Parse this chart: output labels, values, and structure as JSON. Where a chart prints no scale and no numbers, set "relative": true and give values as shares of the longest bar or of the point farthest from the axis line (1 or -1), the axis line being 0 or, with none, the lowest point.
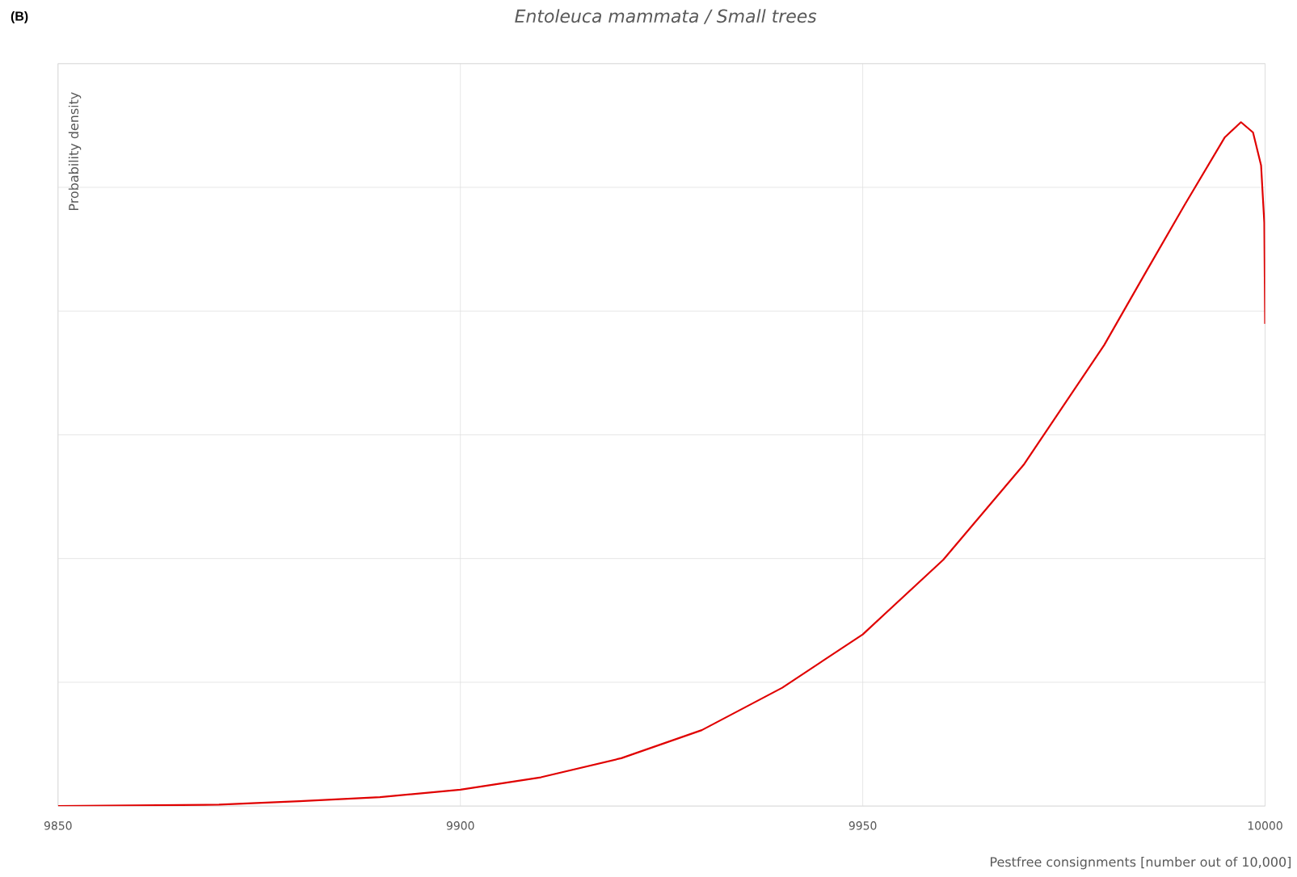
{
  "chart_data": {
    "type": "line",
    "title": "Entoleuca mammata / Small trees",
    "xlabel": "Pestfree consignments [number out of 10,000]",
    "ylabel": "Probability density",
    "annotations": [
      "**(B)**"
    ],
    "relative": true,
    "grid": true,
    "xlim": [
      9850,
      10000
    ],
    "xticks": [
      9850,
      9900,
      9950,
      10000
    ],
    "series": [
      {
        "color": "#e00000",
        "x": [
          9850,
          9870,
          9880,
          9890,
          9900,
          9910,
          9920,
          9930,
          9940,
          9950,
          9960,
          9970,
          9980,
          9985,
          9990,
          9995,
          9997,
          9998.5,
          9999.5,
          9999.9,
          10000
        ],
        "values": [
          0,
          0.002,
          0.007,
          0.013,
          0.024,
          0.042,
          0.07,
          0.111,
          0.173,
          0.251,
          0.36,
          0.499,
          0.674,
          0.777,
          0.879,
          0.978,
          1.0,
          0.985,
          0.937,
          0.853,
          0.705
        ]
      }
    ]
  }
}
